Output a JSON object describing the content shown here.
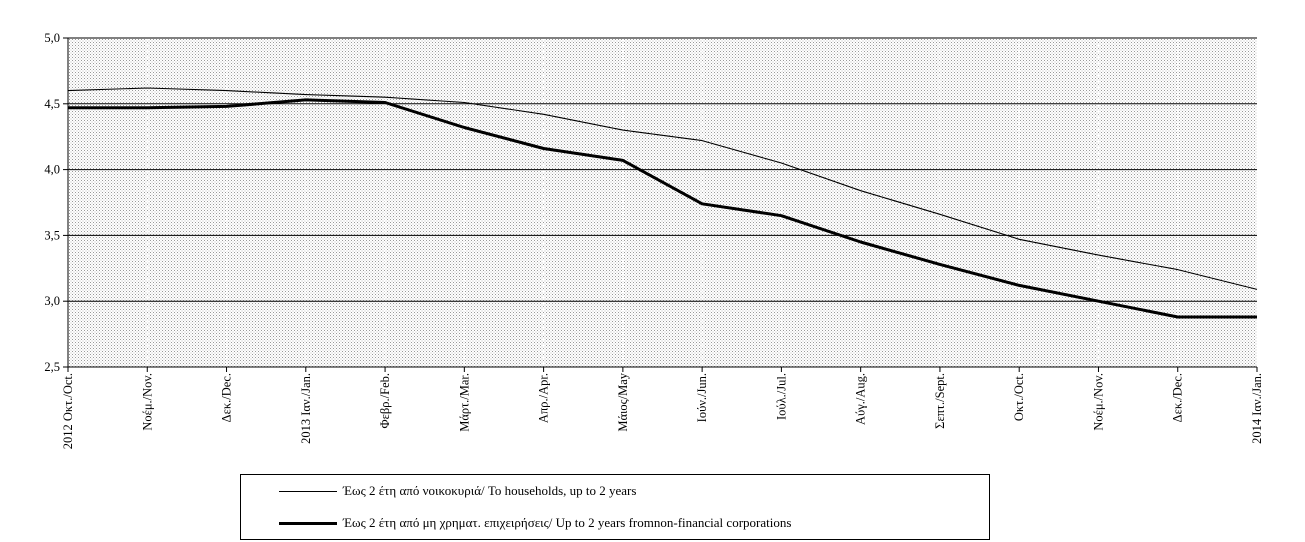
{
  "chart_data": {
    "type": "line",
    "categories": [
      "2012 Οκτ./Oct.",
      "Νοέμ./Nov.",
      "Δεκ./Dec.",
      "2013 Ιαν./Jan.",
      "Φεβρ./Feb.",
      "Μάρτ./Mar.",
      "Απρ./Apr.",
      "Μάιος/May",
      "Ιούν./Jun.",
      "Ιούλ./Jul.",
      "Αύγ./Aug.",
      "Σεπτ./Sept.",
      "Οκτ./Oct.",
      "Νοέμ./Nov.",
      "Δεκ./Dec.",
      "2014 Ιαν./Jan."
    ],
    "series": [
      {
        "name": "Έως 2 έτη από νοικοκυριά/ To households, up to 2 years",
        "values": [
          4.6,
          4.62,
          4.6,
          4.57,
          4.55,
          4.51,
          4.42,
          4.3,
          4.22,
          4.05,
          3.84,
          3.66,
          3.47,
          3.35,
          3.24,
          3.09
        ],
        "color": "#000000",
        "style": "thin"
      },
      {
        "name": "Έως 2 έτη από μη χρηματ. επιχειρήσεις/ Up to 2 years fromnon-financial corporations",
        "values": [
          4.47,
          4.47,
          4.48,
          4.53,
          4.51,
          4.32,
          4.16,
          4.07,
          3.74,
          3.65,
          3.45,
          3.28,
          3.12,
          3.0,
          2.88,
          2.88
        ],
        "color": "#000000",
        "style": "thick"
      }
    ],
    "ylim": [
      2.5,
      5.0
    ],
    "yticks": [
      "2,5",
      "3,0",
      "3,5",
      "4,0",
      "4,5",
      "5,0"
    ],
    "grid": true,
    "plot_background": "#e4e4e4",
    "legend_position": "bottom"
  }
}
